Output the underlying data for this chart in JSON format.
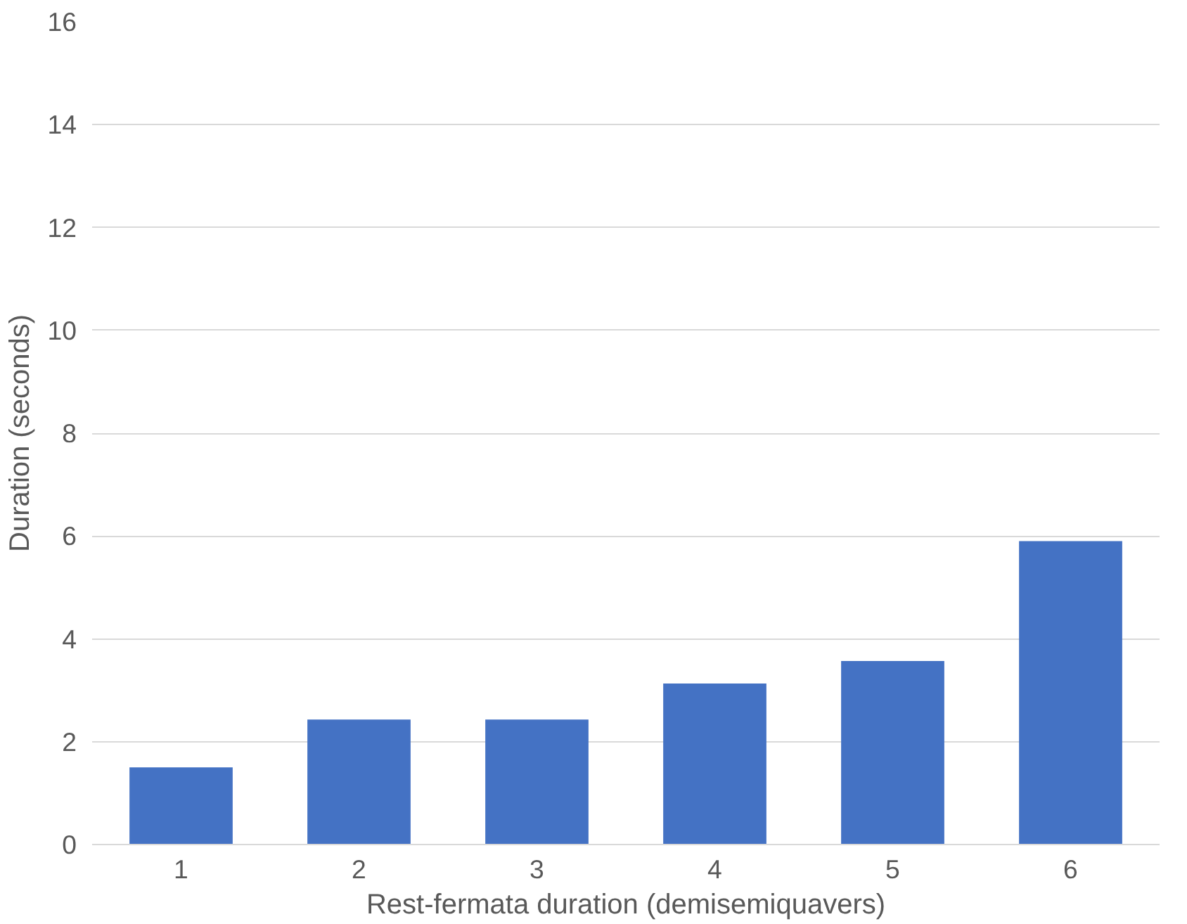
{
  "chart_data": {
    "type": "bar",
    "xlabel": "Rest-fermata duration (demisemiquavers)",
    "ylabel": "Duration (seconds)",
    "categories": [
      "1",
      "2",
      "3",
      "4",
      "5",
      "6"
    ],
    "values": [
      1.5,
      2.43,
      2.43,
      3.13,
      3.57,
      5.9
    ],
    "color": "#4472c4",
    "ylim": [
      0,
      16
    ],
    "yticks": [
      0,
      2,
      4,
      6,
      8,
      10,
      12,
      14,
      16
    ],
    "grid": "y"
  }
}
